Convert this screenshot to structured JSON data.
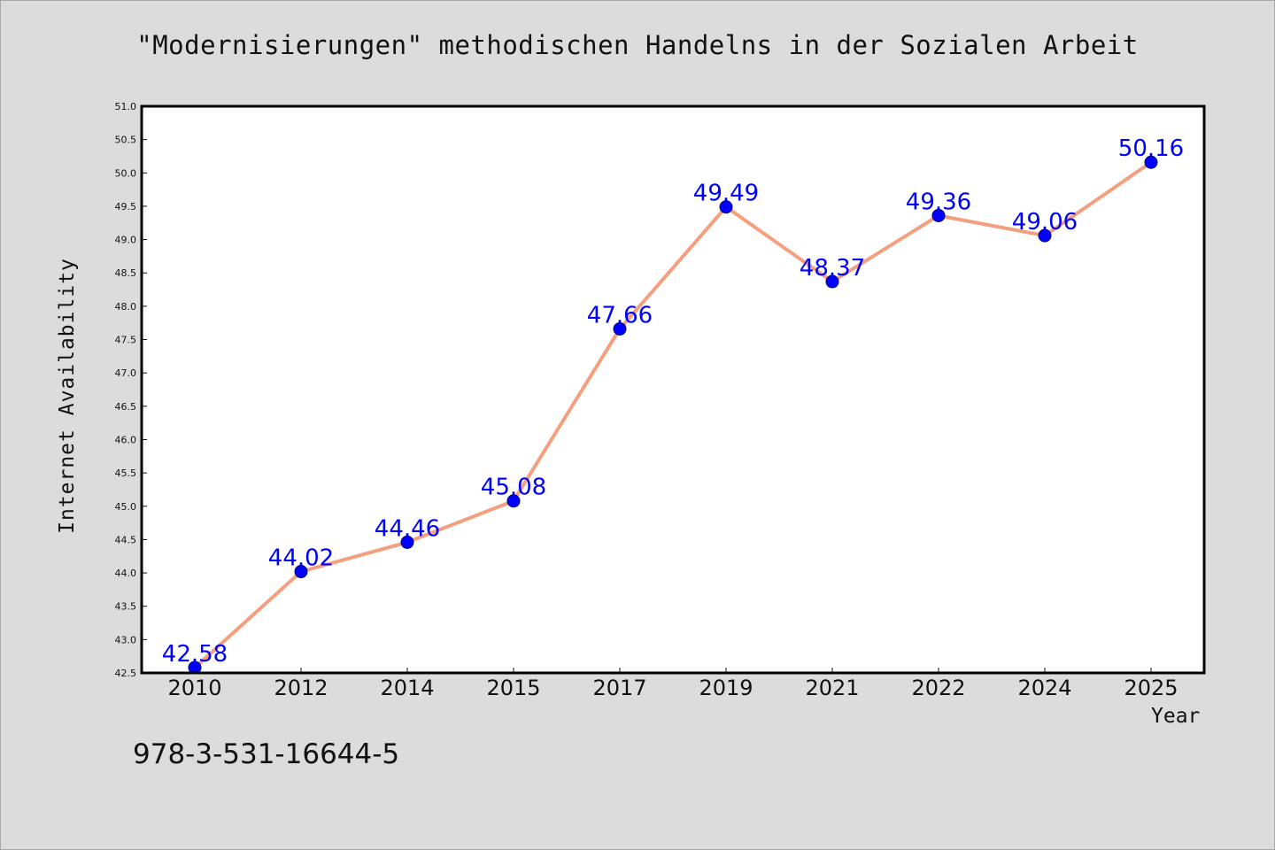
{
  "colors": {
    "background": "#dcdcdc",
    "plot_background": "#ffffff",
    "line": "#f4a07e",
    "marker": "#0000ff",
    "data_label": "#0000ff",
    "text": "#111111"
  },
  "footnote": "978-3-531-16644-5",
  "chart_data": {
    "type": "line",
    "title": "\"Modernisierungen\" methodischen Handelns in der Sozialen Arbeit",
    "xlabel": "Year",
    "ylabel": "Internet Availability",
    "categories": [
      "2010",
      "2012",
      "2014",
      "2015",
      "2017",
      "2019",
      "2021",
      "2022",
      "2024",
      "2025"
    ],
    "series": [
      {
        "values": [
          42.58,
          44.02,
          44.46,
          45.08,
          47.66,
          49.49,
          48.37,
          49.36,
          49.06,
          50.16
        ],
        "labels": [
          "42.58",
          "44.02",
          "44.46",
          "45.08",
          "47.66",
          "49.49",
          "48.37",
          "49.36",
          "49.06",
          "50.16"
        ]
      }
    ],
    "ylim": [
      42.5,
      51.0
    ],
    "yticks": [
      "42.5",
      "43.0",
      "43.5",
      "44.0",
      "44.5",
      "45.0",
      "45.5",
      "46.0",
      "46.5",
      "47.0",
      "47.5",
      "48.0",
      "48.5",
      "49.0",
      "49.5",
      "50.0",
      "50.5",
      "51.0"
    ],
    "grid": false,
    "legend": "none"
  }
}
